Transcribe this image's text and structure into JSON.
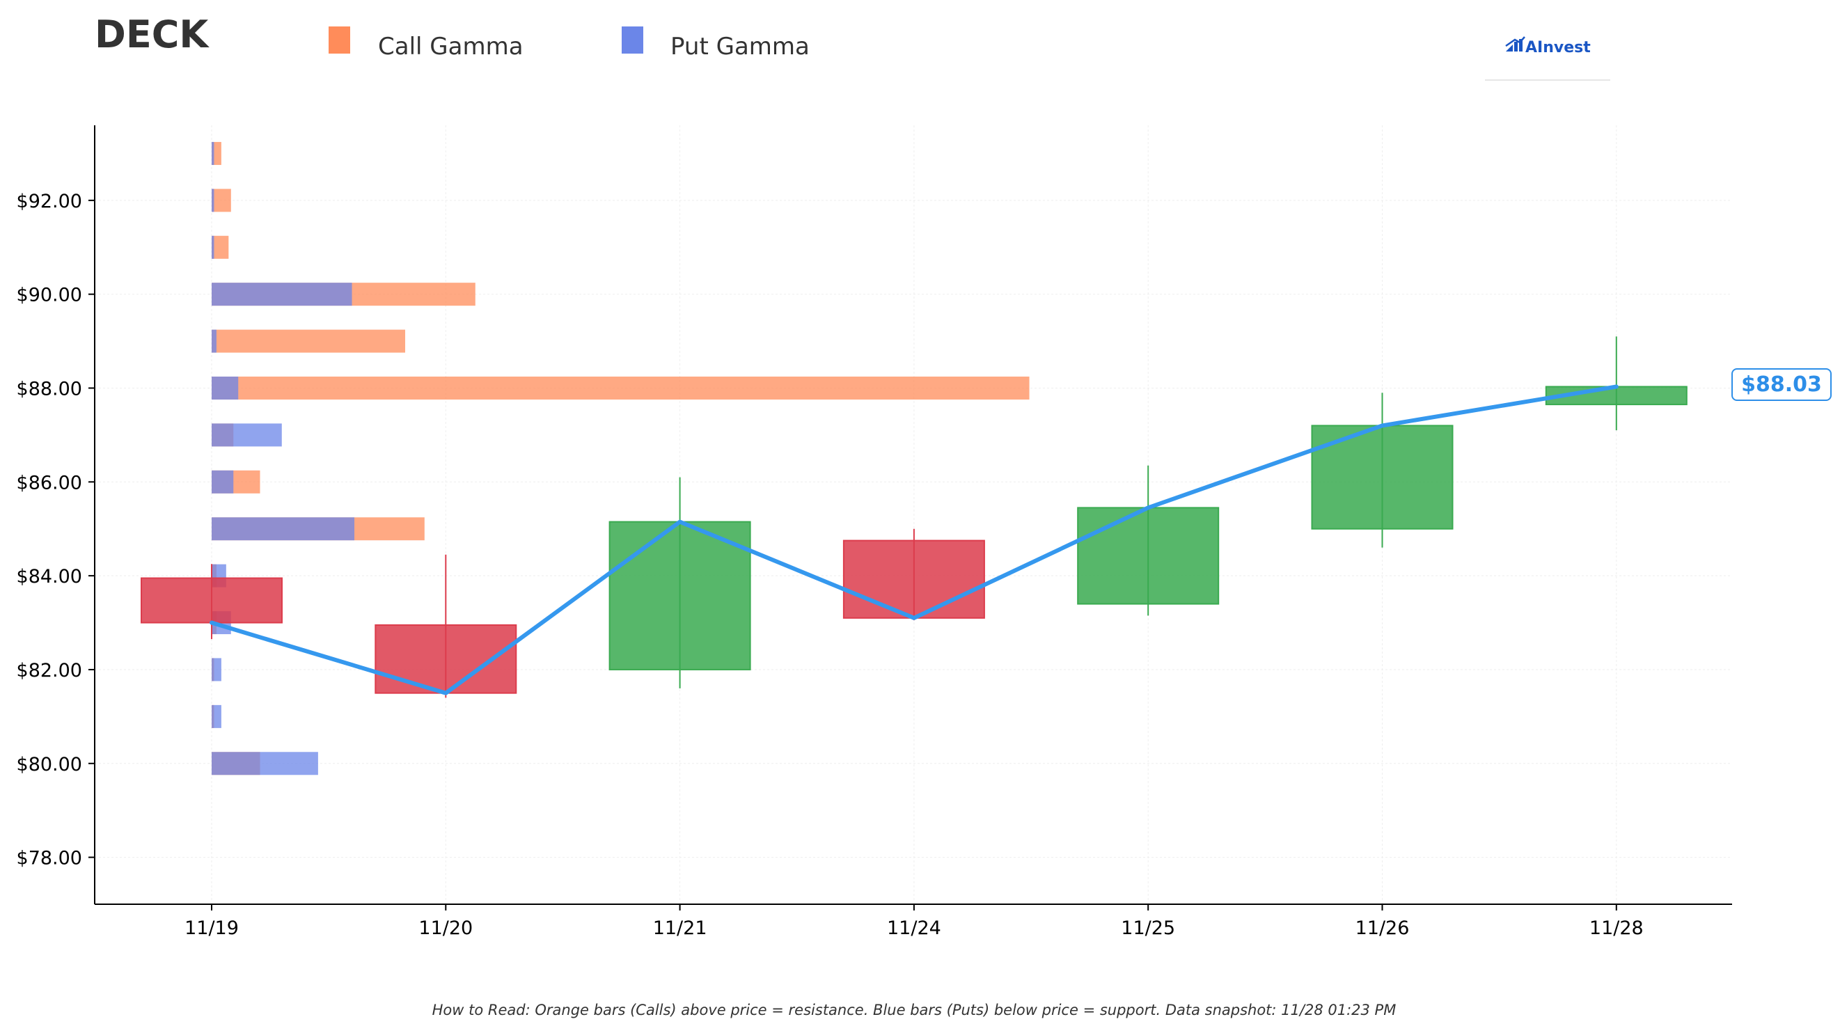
{
  "header": {
    "ticker": "DECK",
    "logo_text": "AInvest"
  },
  "footnote": "How to Read: Orange bars (Calls) above price = resistance. Blue bars (Puts) below price = support. Data snapshot: 11/28 01:23 PM",
  "colors": {
    "call": "#ff8c5a",
    "put": "#6b86e8",
    "up": "#3aaa50",
    "down": "#dc3c4c",
    "line": "#3598ee"
  },
  "chart_data": {
    "type": "candlestick",
    "categories": [
      "11/19",
      "11/20",
      "11/21",
      "11/24",
      "11/25",
      "11/26",
      "11/28"
    ],
    "ylim": [
      77.0,
      93.6
    ],
    "yticks": [
      78,
      80,
      82,
      84,
      86,
      88,
      90,
      92
    ],
    "ytick_labels": [
      "$78.00",
      "$80.00",
      "$82.00",
      "$84.00",
      "$86.00",
      "$88.00",
      "$90.00",
      "$92.00"
    ],
    "last_price_label": "$88.03",
    "legend": {
      "position": "top",
      "entries": [
        {
          "name": "Call Gamma",
          "color": "#ff8c5a"
        },
        {
          "name": "Put Gamma",
          "color": "#6b86e8"
        }
      ]
    },
    "candles": [
      {
        "date": "11/19",
        "open": 83.95,
        "high": 84.25,
        "low": 82.65,
        "close": 83.0
      },
      {
        "date": "11/20",
        "open": 82.95,
        "high": 84.45,
        "low": 81.4,
        "close": 81.5
      },
      {
        "date": "11/21",
        "open": 82.0,
        "high": 86.1,
        "low": 81.6,
        "close": 85.15
      },
      {
        "date": "11/24",
        "open": 84.75,
        "high": 85.0,
        "low": 83.05,
        "close": 83.1
      },
      {
        "date": "11/25",
        "open": 83.4,
        "high": 86.35,
        "low": 83.15,
        "close": 85.45
      },
      {
        "date": "11/26",
        "open": 85.0,
        "high": 87.9,
        "low": 84.6,
        "close": 87.2
      },
      {
        "date": "11/28",
        "open": 87.65,
        "high": 89.1,
        "low": 87.1,
        "close": 88.03
      }
    ],
    "price_line": {
      "x": [
        "11/19",
        "11/20",
        "11/21",
        "11/24",
        "11/25",
        "11/26",
        "11/28"
      ],
      "y": [
        83.0,
        81.5,
        85.15,
        83.1,
        85.45,
        87.2,
        88.03
      ]
    },
    "gamma_exposure": {
      "strikes": [
        80,
        81,
        82,
        83,
        84,
        85,
        86,
        87,
        88,
        89,
        90,
        91,
        92,
        93
      ],
      "put": [
        2.2,
        0.2,
        0.2,
        0.4,
        0.3,
        2.95,
        0.45,
        1.45,
        0.55,
        0.1,
        2.9,
        0.05,
        0.05,
        0.05
      ],
      "call": [
        1.0,
        0.05,
        0.05,
        0.1,
        0.1,
        4.4,
        1.0,
        0.45,
        16.9,
        4.0,
        5.45,
        0.35,
        0.4,
        0.2
      ]
    }
  }
}
